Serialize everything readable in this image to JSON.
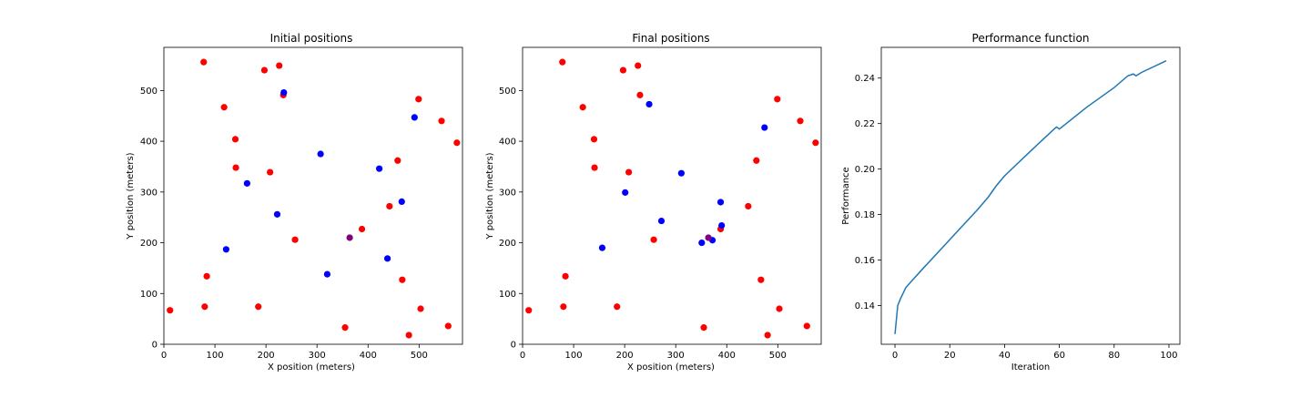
{
  "colors": {
    "red": "#ff0000",
    "blue": "#0000ff",
    "purple": "#800080",
    "line": "#1f77b4"
  },
  "chart_data": [
    {
      "type": "scatter",
      "title": "Initial positions",
      "xlabel": "X position (meters)",
      "ylabel": "Y position (meters)",
      "xlim": [
        0,
        585
      ],
      "ylim": [
        0,
        585
      ],
      "xticks": [
        0,
        100,
        200,
        300,
        400,
        500
      ],
      "yticks": [
        0,
        100,
        200,
        300,
        400,
        500
      ],
      "series": [
        {
          "color": "#ff0000",
          "points": [
            [
              78,
              556
            ],
            [
              197,
              540
            ],
            [
              226,
              549
            ],
            [
              118,
              467
            ],
            [
              234,
              491
            ],
            [
              499,
              483
            ],
            [
              544,
              440
            ],
            [
              574,
              397
            ],
            [
              140,
              404
            ],
            [
              141,
              348
            ],
            [
              208,
              339
            ],
            [
              458,
              362
            ],
            [
              442,
              272
            ],
            [
              388,
              227
            ],
            [
              257,
              206
            ],
            [
              84,
              134
            ],
            [
              467,
              127
            ],
            [
              80,
              74
            ],
            [
              185,
              74
            ],
            [
              503,
              70
            ],
            [
              12,
              67
            ],
            [
              355,
              33
            ],
            [
              480,
              18
            ],
            [
              557,
              36
            ]
          ]
        },
        {
          "color": "#0000ff",
          "points": [
            [
              235,
              496
            ],
            [
              491,
              447
            ],
            [
              307,
              375
            ],
            [
              422,
              346
            ],
            [
              163,
              317
            ],
            [
              466,
              281
            ],
            [
              222,
              256
            ],
            [
              122,
              187
            ],
            [
              320,
              138
            ],
            [
              438,
              169
            ]
          ]
        },
        {
          "color": "#800080",
          "points": [
            [
              364,
              210
            ]
          ]
        }
      ]
    },
    {
      "type": "scatter",
      "title": "Final positions",
      "xlabel": "X position (meters)",
      "ylabel": "Y position (meters)",
      "xlim": [
        0,
        585
      ],
      "ylim": [
        0,
        585
      ],
      "xticks": [
        0,
        100,
        200,
        300,
        400,
        500
      ],
      "yticks": [
        0,
        100,
        200,
        300,
        400,
        500
      ],
      "series": [
        {
          "color": "#ff0000",
          "points": [
            [
              78,
              556
            ],
            [
              197,
              540
            ],
            [
              226,
              549
            ],
            [
              118,
              467
            ],
            [
              230,
              491
            ],
            [
              499,
              483
            ],
            [
              544,
              440
            ],
            [
              574,
              397
            ],
            [
              140,
              404
            ],
            [
              141,
              348
            ],
            [
              208,
              339
            ],
            [
              458,
              362
            ],
            [
              442,
              272
            ],
            [
              388,
              227
            ],
            [
              257,
              206
            ],
            [
              84,
              134
            ],
            [
              467,
              127
            ],
            [
              80,
              74
            ],
            [
              185,
              74
            ],
            [
              503,
              70
            ],
            [
              12,
              67
            ],
            [
              355,
              33
            ],
            [
              480,
              18
            ],
            [
              557,
              36
            ]
          ]
        },
        {
          "color": "#0000ff",
          "points": [
            [
              248,
              473
            ],
            [
              474,
              427
            ],
            [
              311,
              337
            ],
            [
              201,
              299
            ],
            [
              388,
              280
            ],
            [
              272,
              243
            ],
            [
              390,
              234
            ],
            [
              156,
              190
            ],
            [
              351,
              200
            ],
            [
              372,
              205
            ]
          ]
        },
        {
          "color": "#800080",
          "points": [
            [
              364,
              210
            ]
          ]
        }
      ]
    },
    {
      "type": "line",
      "title": "Performance function",
      "xlabel": "Iteration",
      "ylabel": "Performance",
      "xlim": [
        -5,
        104
      ],
      "ylim": [
        0.123,
        0.2535
      ],
      "xticks": [
        0,
        20,
        40,
        60,
        80,
        100
      ],
      "yticks": [
        0.14,
        0.16,
        0.18,
        0.2,
        0.22,
        0.24
      ],
      "ytick_labels": [
        "0.14",
        "0.16",
        "0.18",
        "0.20",
        "0.22",
        "0.24"
      ],
      "x": [
        0,
        1,
        2,
        4,
        10,
        20,
        30,
        34,
        37,
        40,
        50,
        58,
        59,
        60,
        70,
        80,
        85,
        87,
        88,
        90,
        99
      ],
      "values": [
        0.1275,
        0.14,
        0.143,
        0.148,
        0.156,
        0.169,
        0.182,
        0.1876,
        0.1927,
        0.197,
        0.2085,
        0.2175,
        0.2185,
        0.2176,
        0.2272,
        0.2358,
        0.241,
        0.2418,
        0.241,
        0.2425,
        0.2476
      ]
    }
  ]
}
